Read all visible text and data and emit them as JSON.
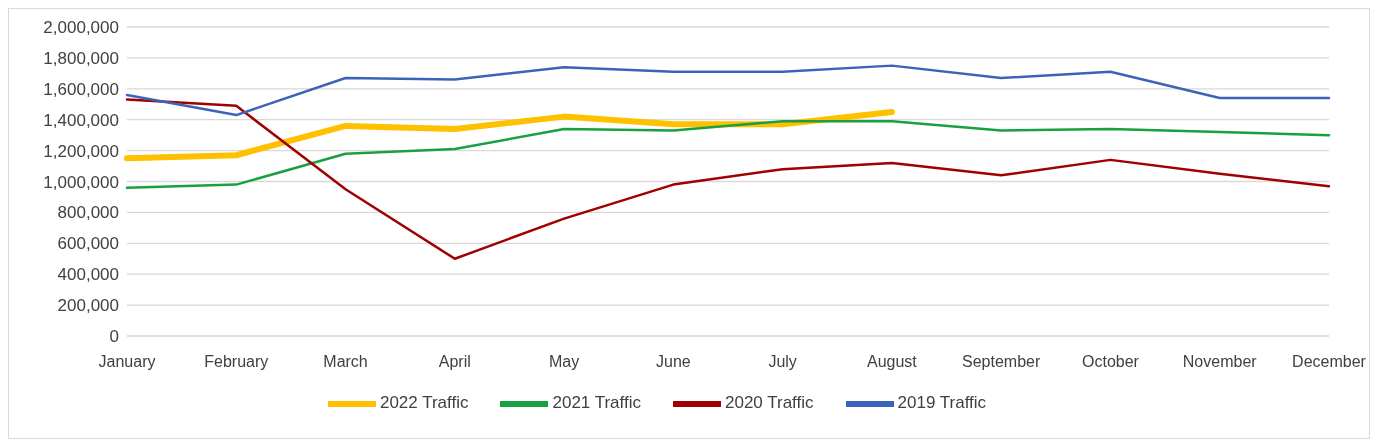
{
  "chart_data": {
    "type": "line",
    "categories": [
      "January",
      "February",
      "March",
      "April",
      "May",
      "June",
      "July",
      "August",
      "September",
      "October",
      "November",
      "December"
    ],
    "series": [
      {
        "name": "2022 Traffic",
        "color": "#ffc000",
        "values": [
          1150000,
          1170000,
          1360000,
          1340000,
          1420000,
          1370000,
          1370000,
          1450000,
          null,
          null,
          null,
          null
        ]
      },
      {
        "name": "2021 Traffic",
        "color": "#1aa040",
        "values": [
          960000,
          980000,
          1180000,
          1210000,
          1340000,
          1330000,
          1390000,
          1390000,
          1330000,
          1340000,
          1320000,
          1300000
        ]
      },
      {
        "name": "2020 Traffic",
        "color": "#a00000",
        "values": [
          1530000,
          1490000,
          950000,
          500000,
          760000,
          980000,
          1080000,
          1120000,
          1040000,
          1140000,
          1050000,
          970000
        ]
      },
      {
        "name": "2019 Traffic",
        "color": "#3d63b8",
        "values": [
          1560000,
          1430000,
          1670000,
          1660000,
          1740000,
          1710000,
          1710000,
          1750000,
          1670000,
          1710000,
          1540000,
          1540000
        ]
      }
    ],
    "ylim": [
      0,
      2000000
    ],
    "yticks": [
      {
        "value": 0,
        "label": "0"
      },
      {
        "value": 200000,
        "label": "200,000"
      },
      {
        "value": 400000,
        "label": "400,000"
      },
      {
        "value": 600000,
        "label": "600,000"
      },
      {
        "value": 800000,
        "label": "800,000"
      },
      {
        "value": 1000000,
        "label": "1,000,000"
      },
      {
        "value": 1200000,
        "label": "1,200,000"
      },
      {
        "value": 1400000,
        "label": "1,400,000"
      },
      {
        "value": 1600000,
        "label": "1,600,000"
      },
      {
        "value": 1800000,
        "label": "1,800,000"
      },
      {
        "value": 2000000,
        "label": "2,000,000"
      }
    ],
    "grid": "y",
    "legend": "bottom",
    "marker": "none",
    "line_style": "solid"
  }
}
